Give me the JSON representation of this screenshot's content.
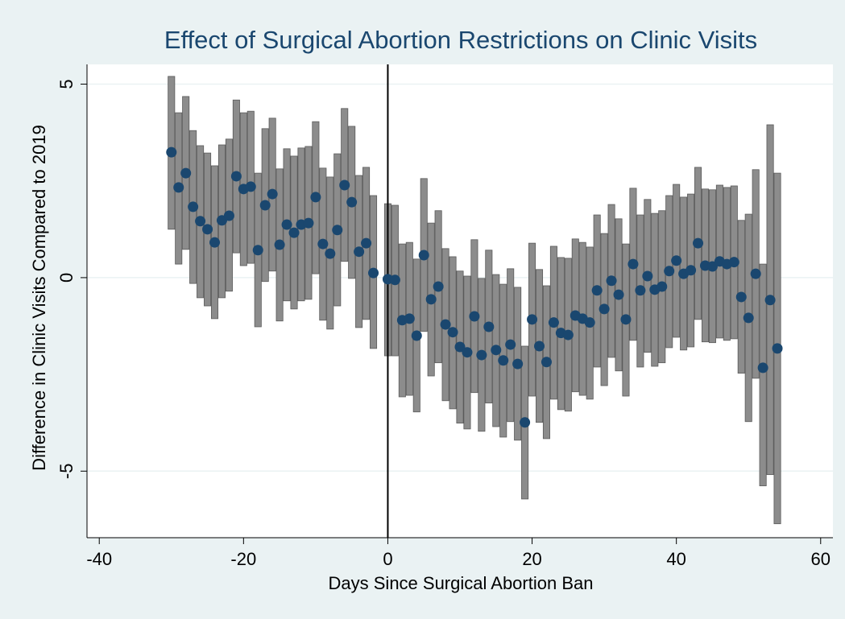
{
  "chart_data": {
    "type": "scatter",
    "title": "Effect of Surgical Abortion Restrictions on Clinic Visits",
    "x_label": "Days Since Surgical Abortion Ban",
    "y_label": "Difference in Clinic Visits Compared to 2019",
    "x": [
      -30,
      -29,
      -28,
      -27,
      -26,
      -25,
      -24,
      -23,
      -22,
      -21,
      -20,
      -19,
      -18,
      -17,
      -16,
      -15,
      -14,
      -13,
      -12,
      -11,
      -10,
      -9,
      -8,
      -7,
      -6,
      -5,
      -4,
      -3,
      -2,
      0,
      1,
      2,
      3,
      4,
      5,
      6,
      7,
      8,
      9,
      10,
      11,
      12,
      13,
      14,
      15,
      16,
      17,
      18,
      19,
      20,
      21,
      22,
      23,
      24,
      25,
      26,
      27,
      28,
      29,
      30,
      31,
      32,
      33,
      34,
      35,
      36,
      37,
      38,
      39,
      40,
      41,
      42,
      43,
      44,
      45,
      46,
      47,
      48,
      49,
      50,
      51,
      52,
      53,
      54
    ],
    "values": [
      3.24,
      2.33,
      2.7,
      1.83,
      1.46,
      1.25,
      0.91,
      1.48,
      1.6,
      2.62,
      2.29,
      2.35,
      0.71,
      1.87,
      2.16,
      0.85,
      1.37,
      1.16,
      1.37,
      1.41,
      2.08,
      0.87,
      0.62,
      1.23,
      2.39,
      1.95,
      0.67,
      0.89,
      0.12,
      -0.04,
      -0.06,
      -1.1,
      -1.06,
      -1.5,
      0.58,
      -0.56,
      -0.23,
      -1.21,
      -1.41,
      -1.79,
      -1.93,
      -1.0,
      -2.0,
      -1.27,
      -1.87,
      -2.14,
      -1.73,
      -2.23,
      -3.74,
      -1.08,
      -1.77,
      -2.18,
      -1.16,
      -1.43,
      -1.48,
      -0.98,
      -1.06,
      -1.16,
      -0.33,
      -0.81,
      -0.08,
      -0.44,
      -1.08,
      0.35,
      -0.33,
      0.04,
      -0.31,
      -0.23,
      0.17,
      0.44,
      0.1,
      0.19,
      0.89,
      0.31,
      0.29,
      0.42,
      0.35,
      0.4,
      -0.5,
      -1.04,
      0.1,
      -2.33,
      -0.58,
      -1.83
    ],
    "lower": [
      1.25,
      0.35,
      0.73,
      -0.15,
      -0.52,
      -0.73,
      -1.06,
      -0.52,
      -0.35,
      0.64,
      0.31,
      0.37,
      -1.27,
      -0.1,
      0.17,
      -1.12,
      -0.6,
      -0.81,
      -0.6,
      -0.56,
      0.1,
      -1.1,
      -1.33,
      -0.73,
      0.42,
      -0.02,
      -1.29,
      -1.08,
      -1.83,
      -2.02,
      -2.02,
      -3.08,
      -3.04,
      -3.47,
      -1.39,
      -2.54,
      -2.2,
      -3.18,
      -3.39,
      -3.76,
      -3.91,
      -2.97,
      -3.97,
      -3.24,
      -3.85,
      -4.12,
      -3.72,
      -4.2,
      -5.72,
      -3.06,
      -3.74,
      -4.16,
      -3.14,
      -3.41,
      -3.45,
      -2.95,
      -3.04,
      -3.14,
      -2.31,
      -2.79,
      -2.06,
      -2.41,
      -3.06,
      -1.62,
      -2.31,
      -1.93,
      -2.29,
      -2.2,
      -1.81,
      -1.54,
      -1.87,
      -1.79,
      -1.08,
      -1.66,
      -1.68,
      -1.56,
      -1.62,
      -1.58,
      -2.47,
      -3.72,
      -2.6,
      -5.38,
      -5.09,
      -6.36
    ],
    "upper": [
      5.2,
      4.26,
      4.68,
      3.8,
      3.41,
      3.22,
      2.89,
      3.43,
      3.58,
      4.59,
      4.26,
      4.3,
      2.7,
      3.85,
      4.12,
      2.81,
      3.33,
      3.14,
      3.35,
      3.39,
      4.03,
      2.83,
      2.6,
      3.2,
      4.37,
      3.91,
      2.64,
      2.85,
      2.12,
      1.91,
      1.87,
      0.87,
      0.91,
      0.48,
      2.56,
      1.41,
      1.73,
      0.75,
      0.54,
      0.17,
      0.04,
      0.98,
      -0.02,
      0.71,
      0.08,
      -0.17,
      0.23,
      -0.25,
      -1.77,
      0.89,
      0.21,
      -0.21,
      0.81,
      0.52,
      0.5,
      1.0,
      0.91,
      0.79,
      1.62,
      1.14,
      1.89,
      1.52,
      0.87,
      2.31,
      1.62,
      2.02,
      1.66,
      1.73,
      2.12,
      2.41,
      2.08,
      2.16,
      2.85,
      2.29,
      2.27,
      2.39,
      2.33,
      2.37,
      1.48,
      1.64,
      2.79,
      0.35,
      3.95,
      2.7
    ],
    "color": "#1a476f",
    "bar_color": "#8c8c8c",
    "vline": 0,
    "xlim": [
      -41.7,
      61.7
    ],
    "xticks": [
      -40,
      -20,
      0,
      20,
      40,
      60
    ],
    "ylim": [
      -6.72,
      5.51
    ],
    "yticks": [
      -5,
      0,
      5
    ],
    "grid": true
  }
}
